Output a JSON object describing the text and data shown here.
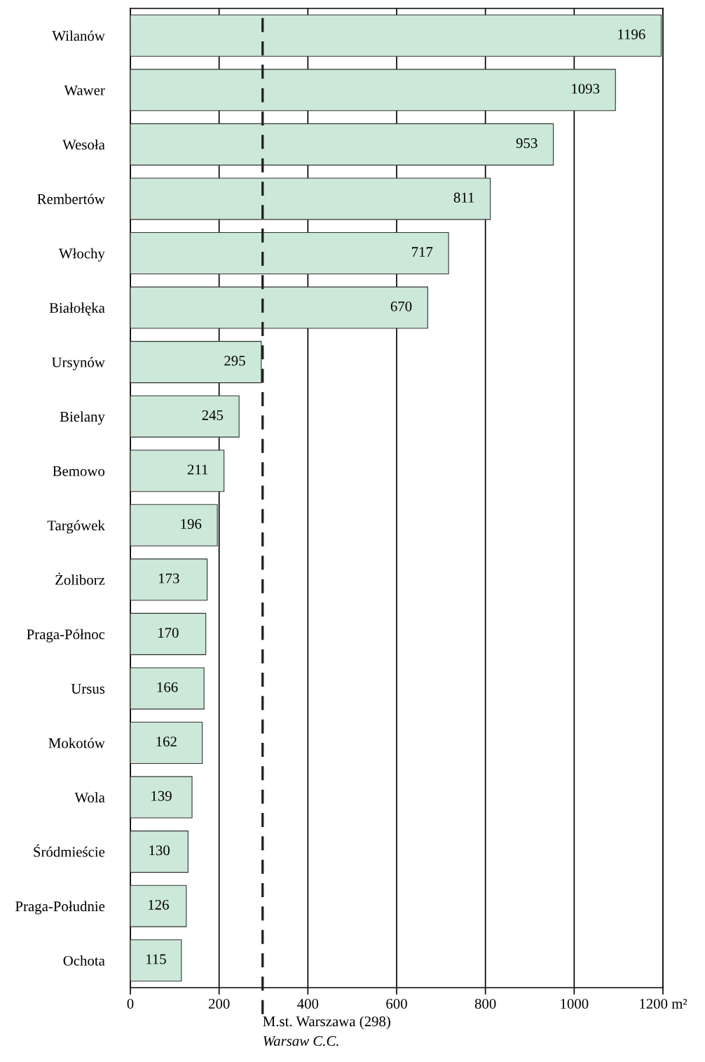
{
  "chart_data": {
    "type": "bar",
    "orientation": "horizontal",
    "categories": [
      "Wilanów",
      "Wawer",
      "Wesoła",
      "Rembertów",
      "Włochy",
      "Białołęka",
      "Ursynów",
      "Bielany",
      "Bemowo",
      "Targówek",
      "Żoliborz",
      "Praga-Północ",
      "Ursus",
      "Mokotów",
      "Wola",
      "Śródmieście",
      "Praga-Południe",
      "Ochota"
    ],
    "values": [
      1196,
      1093,
      953,
      811,
      717,
      670,
      295,
      245,
      211,
      196,
      173,
      170,
      166,
      162,
      139,
      130,
      126,
      115
    ],
    "color": "#cce8d8",
    "data_labels": true,
    "xlim": [
      0,
      1200
    ],
    "xticks": [
      0,
      200,
      400,
      600,
      800,
      1000,
      {
        "value": 1200,
        "label": "1200 m²"
      }
    ],
    "grid": "x",
    "ref_lines": [
      {
        "axis": "x",
        "value": 298,
        "label": "M.st. Warszawa (298)",
        "line_style": "dashed",
        "color": "#222222"
      }
    ],
    "annotations": [
      "Warsaw C.C."
    ]
  }
}
